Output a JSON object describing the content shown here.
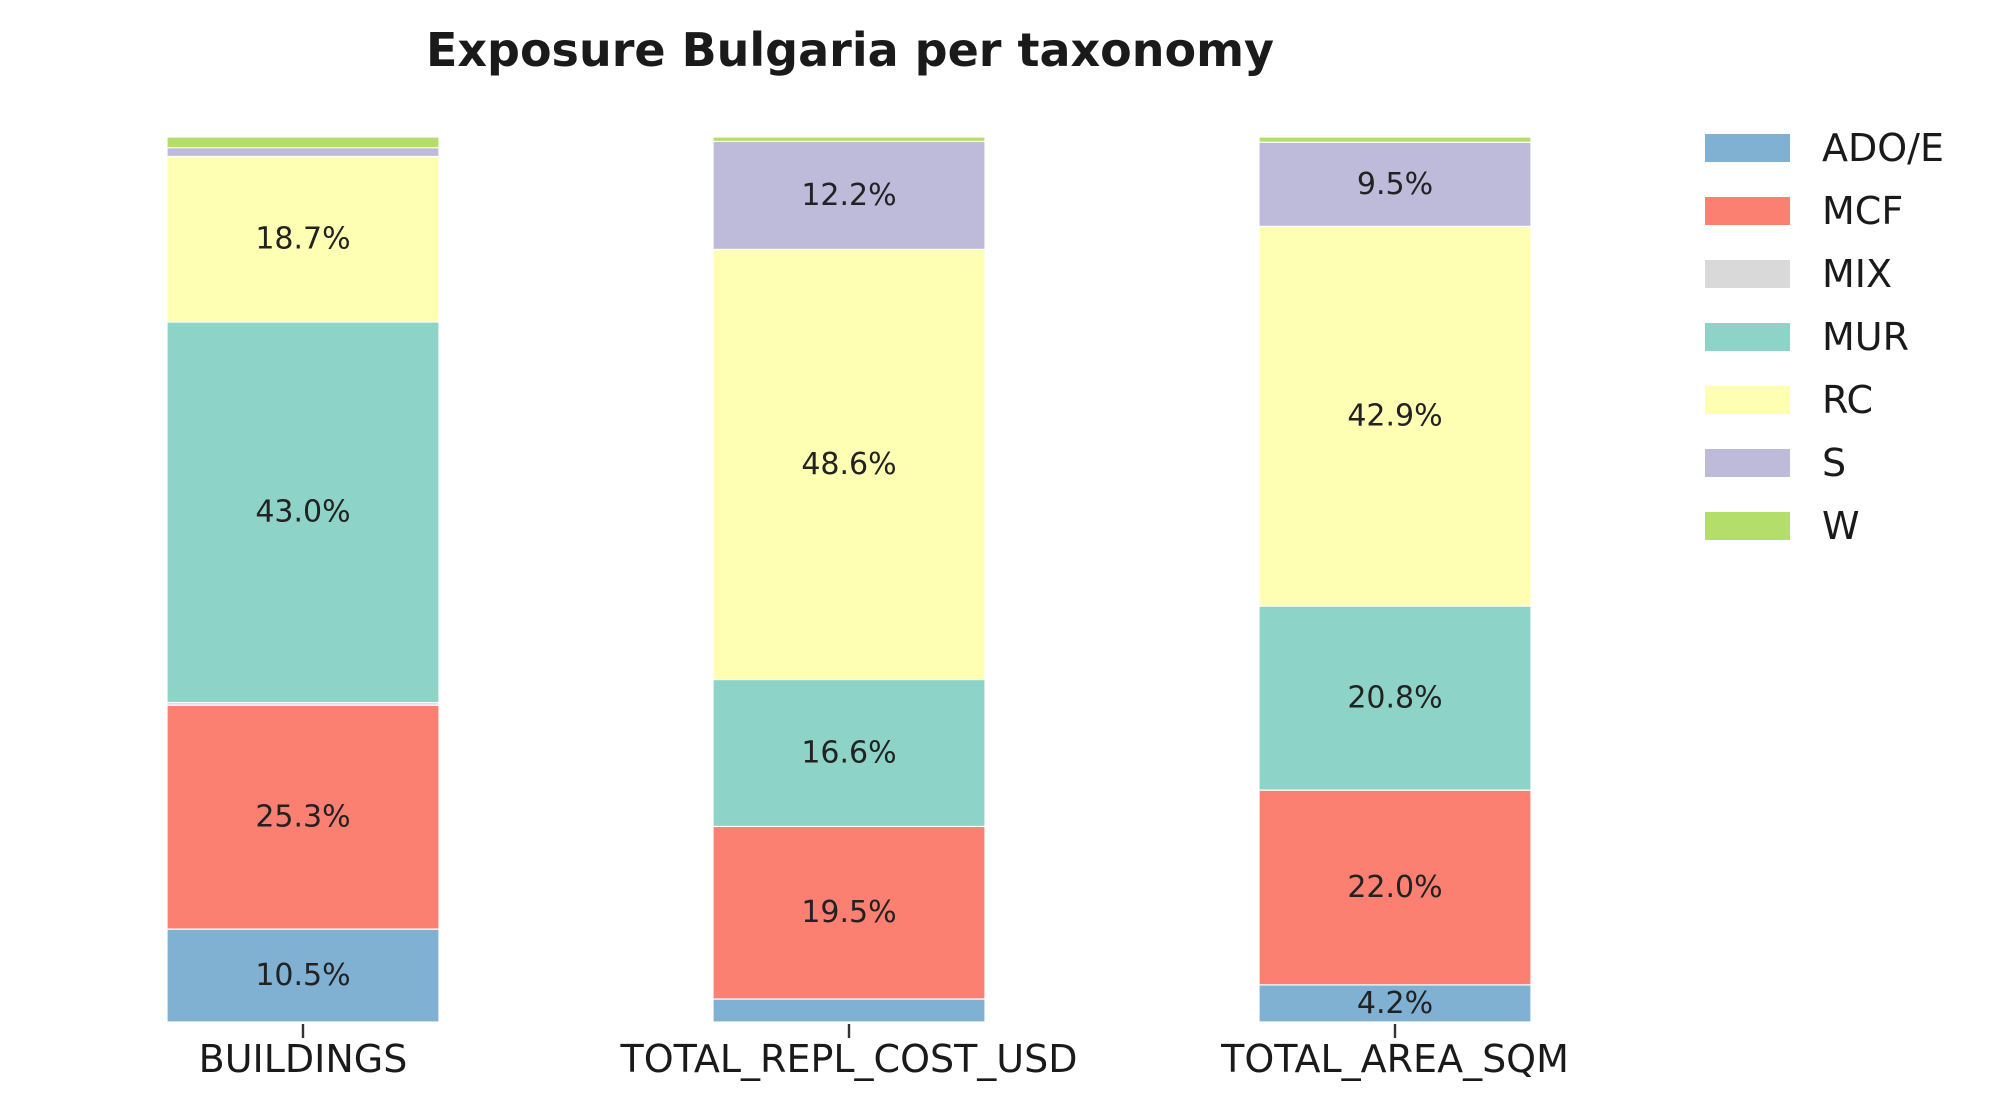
{
  "chart_data": {
    "type": "bar",
    "stacked": true,
    "title": "Exposure Bulgaria per taxonomy",
    "xlabel": "",
    "ylabel": "",
    "ylim": [
      0,
      100
    ],
    "grid": false,
    "legend_position": "right",
    "categories": [
      "BUILDINGS",
      "TOTAL_REPL_COST_USD",
      "TOTAL_AREA_SQM"
    ],
    "series": [
      {
        "name": "ADO/E",
        "color": "#80b1d3",
        "values": [
          10.5,
          2.6,
          4.2
        ],
        "labels": [
          "10.5%",
          "",
          "4.2%"
        ]
      },
      {
        "name": "MCF",
        "color": "#fb8072",
        "values": [
          25.3,
          19.5,
          22.0
        ],
        "labels": [
          "25.3%",
          "19.5%",
          "22.0%"
        ]
      },
      {
        "name": "MIX",
        "color": "#d9d9d9",
        "values": [
          0.3,
          0.0,
          0.0
        ],
        "labels": [
          "",
          "",
          ""
        ]
      },
      {
        "name": "MUR",
        "color": "#8dd3c7",
        "values": [
          43.0,
          16.6,
          20.8
        ],
        "labels": [
          "43.0%",
          "16.6%",
          "20.8%"
        ]
      },
      {
        "name": "RC",
        "color": "#ffffb3",
        "values": [
          18.7,
          48.6,
          42.9
        ],
        "labels": [
          "18.7%",
          "48.6%",
          "42.9%"
        ]
      },
      {
        "name": "S",
        "color": "#bebada",
        "values": [
          1.0,
          12.2,
          9.5
        ],
        "labels": [
          "",
          "12.2%",
          "9.5%"
        ]
      },
      {
        "name": "W",
        "color": "#b3de69",
        "values": [
          1.2,
          0.5,
          0.6
        ],
        "labels": [
          "",
          "",
          ""
        ]
      }
    ]
  }
}
